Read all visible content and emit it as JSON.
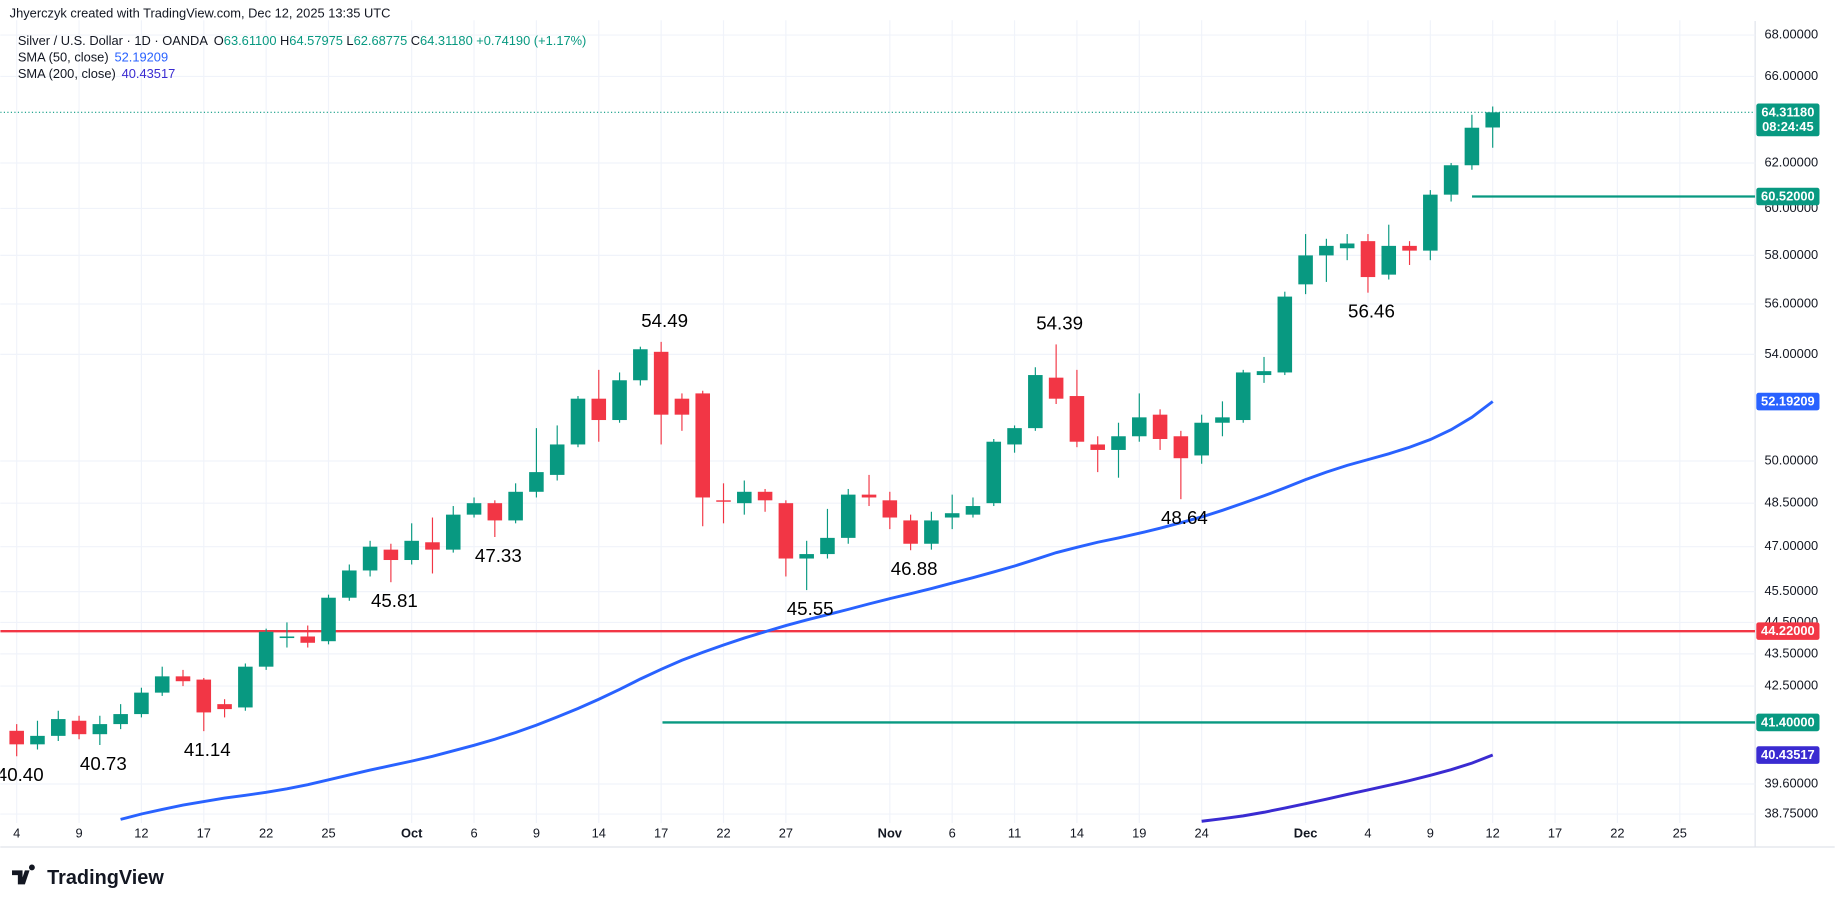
{
  "header": "Jhyerczyk created with TradingView.com, Dec 12, 2025 13:35 UTC",
  "brand": "TradingView",
  "chart_data": {
    "type": "candlestick",
    "symbol": "Silver / U.S. Dollar · 1D · OANDA",
    "ohlc_legend": [
      {
        "key": "O",
        "value": "63.61100"
      },
      {
        "key": "H",
        "value": "64.57975"
      },
      {
        "key": "L",
        "value": "62.68775"
      },
      {
        "key": "C",
        "value": "64.31180"
      }
    ],
    "change": "+0.74190 (+1.17%)",
    "categories": [
      "4",
      null,
      null,
      "9",
      null,
      null,
      "12",
      null,
      null,
      "17",
      null,
      null,
      "22",
      null,
      null,
      "25",
      null,
      null,
      null,
      "Oct",
      null,
      null,
      "6",
      null,
      null,
      "9",
      null,
      null,
      "14",
      null,
      null,
      "17",
      null,
      null,
      "22",
      null,
      null,
      "27",
      null,
      null,
      null,
      null,
      "Nov",
      null,
      null,
      "6",
      null,
      null,
      "11",
      null,
      null,
      "14",
      null,
      null,
      "19",
      null,
      null,
      "24",
      null,
      null,
      null,
      null,
      "Dec",
      null,
      null,
      "4",
      null,
      null,
      "9",
      null,
      null,
      "12",
      null,
      null,
      "17",
      null,
      null,
      "22",
      null,
      null,
      "25",
      null
    ],
    "open": [
      41.15,
      40.75,
      41.0,
      41.45,
      41.05,
      41.35,
      41.65,
      42.3,
      42.8,
      42.7,
      41.95,
      41.85,
      43.1,
      44.0,
      44.05,
      43.9,
      45.3,
      46.2,
      46.9,
      46.55,
      47.15,
      46.9,
      48.1,
      48.5,
      47.9,
      48.9,
      49.5,
      50.6,
      52.3,
      51.5,
      53.0,
      54.1,
      52.3,
      52.5,
      48.6,
      48.5,
      48.9,
      48.5,
      46.6,
      46.75,
      47.3,
      48.8,
      48.6,
      47.9,
      47.1,
      48.0,
      48.1,
      48.5,
      50.6,
      51.2,
      53.1,
      52.4,
      50.6,
      50.4,
      50.9,
      51.7,
      50.9,
      50.2,
      51.4,
      51.5,
      53.2,
      53.3,
      56.8,
      58.0,
      58.3,
      58.6,
      57.2,
      58.4,
      58.2,
      60.6,
      61.9,
      63.611,
      null,
      null,
      null,
      null,
      null,
      null,
      null,
      null,
      null,
      null
    ],
    "high": [
      41.35,
      41.45,
      41.75,
      41.6,
      41.6,
      41.95,
      42.45,
      43.1,
      43.0,
      42.75,
      42.1,
      43.2,
      44.3,
      44.5,
      44.4,
      45.4,
      46.4,
      47.2,
      47.1,
      47.8,
      48.0,
      48.4,
      48.7,
      48.6,
      49.2,
      51.2,
      51.3,
      52.4,
      53.4,
      53.3,
      54.3,
      54.49,
      52.5,
      52.6,
      49.2,
      49.3,
      49.0,
      48.6,
      47.2,
      48.3,
      49.0,
      49.5,
      48.9,
      48.1,
      48.2,
      48.8,
      48.7,
      50.8,
      51.3,
      53.5,
      54.39,
      53.4,
      50.9,
      51.4,
      52.5,
      51.9,
      51.1,
      51.7,
      52.2,
      53.4,
      53.9,
      56.5,
      58.9,
      58.7,
      58.9,
      58.9,
      59.3,
      58.6,
      60.8,
      62.0,
      64.2,
      64.57975,
      null,
      null,
      null,
      null,
      null,
      null,
      null,
      null,
      null,
      null
    ],
    "low": [
      40.4,
      40.6,
      40.85,
      40.9,
      40.73,
      41.2,
      41.55,
      42.2,
      42.5,
      41.14,
      41.55,
      41.75,
      43.0,
      43.7,
      43.7,
      43.8,
      45.2,
      46.0,
      45.81,
      46.4,
      46.1,
      46.8,
      48.0,
      47.33,
      47.8,
      48.7,
      49.3,
      50.5,
      50.7,
      51.4,
      52.8,
      50.6,
      51.1,
      47.7,
      47.8,
      48.1,
      48.2,
      46.0,
      45.55,
      46.6,
      47.1,
      48.4,
      47.6,
      46.88,
      46.9,
      47.6,
      48.0,
      48.4,
      50.3,
      51.1,
      52.1,
      50.5,
      49.6,
      49.4,
      50.7,
      50.4,
      48.64,
      49.9,
      50.9,
      51.4,
      52.9,
      53.2,
      56.4,
      56.9,
      57.8,
      56.46,
      57.0,
      57.6,
      57.8,
      60.3,
      61.7,
      62.68775,
      null,
      null,
      null,
      null,
      null,
      null,
      null,
      null,
      null,
      null
    ],
    "close": [
      40.75,
      41.0,
      41.5,
      41.05,
      41.35,
      41.65,
      42.3,
      42.8,
      42.65,
      41.7,
      41.8,
      43.1,
      44.2,
      44.05,
      43.85,
      45.3,
      46.2,
      47.0,
      46.55,
      47.2,
      46.9,
      48.1,
      48.5,
      47.9,
      48.9,
      49.6,
      50.6,
      52.3,
      51.5,
      53.0,
      54.2,
      51.7,
      51.7,
      48.7,
      48.55,
      48.9,
      48.6,
      46.6,
      46.75,
      47.3,
      48.8,
      48.7,
      48.0,
      47.1,
      47.9,
      48.15,
      48.4,
      50.7,
      51.2,
      53.2,
      52.3,
      50.7,
      50.4,
      50.9,
      51.6,
      50.8,
      50.1,
      51.4,
      51.6,
      53.3,
      53.35,
      56.3,
      58.0,
      58.4,
      58.5,
      57.1,
      58.4,
      58.2,
      60.6,
      61.9,
      63.6,
      64.3118,
      null,
      null,
      null,
      null,
      null,
      null,
      null,
      null,
      null,
      null
    ],
    "up_color": "#089981",
    "down_color": "#f23645",
    "series": [
      {
        "name": "SMA (50, close)",
        "color": "#2962ff",
        "values": [
          null,
          null,
          null,
          null,
          null,
          38.6,
          38.75,
          38.88,
          39.0,
          39.1,
          39.2,
          39.28,
          39.36,
          39.46,
          39.58,
          39.72,
          39.86,
          40.0,
          40.13,
          40.26,
          40.4,
          40.56,
          40.72,
          40.9,
          41.1,
          41.32,
          41.56,
          41.82,
          42.1,
          42.4,
          42.72,
          43.02,
          43.3,
          43.55,
          43.78,
          44.0,
          44.2,
          44.4,
          44.58,
          44.75,
          44.92,
          45.1,
          45.27,
          45.43,
          45.6,
          45.78,
          45.96,
          46.15,
          46.35,
          46.57,
          46.8,
          46.98,
          47.15,
          47.3,
          47.46,
          47.63,
          47.82,
          48.02,
          48.25,
          48.5,
          48.76,
          49.04,
          49.33,
          49.6,
          49.84,
          50.05,
          50.26,
          50.5,
          50.78,
          51.14,
          51.6,
          52.19209,
          null,
          null,
          null,
          null,
          null,
          null,
          null,
          null,
          null,
          null
        ]
      },
      {
        "name": "SMA (200, close)",
        "color": "#3a2bd1",
        "values": [
          null,
          null,
          null,
          null,
          null,
          null,
          null,
          null,
          null,
          null,
          null,
          null,
          null,
          null,
          null,
          null,
          null,
          null,
          null,
          null,
          null,
          null,
          null,
          null,
          null,
          null,
          null,
          null,
          null,
          null,
          null,
          null,
          null,
          null,
          null,
          null,
          null,
          null,
          null,
          null,
          null,
          null,
          null,
          null,
          null,
          null,
          null,
          null,
          null,
          null,
          null,
          null,
          null,
          null,
          null,
          null,
          null,
          38.55,
          38.62,
          38.7,
          38.8,
          38.92,
          39.04,
          39.17,
          39.3,
          39.43,
          39.56,
          39.7,
          39.85,
          40.01,
          40.2,
          40.43517,
          null,
          null,
          null,
          null,
          null,
          null,
          null,
          null,
          null,
          null
        ]
      }
    ],
    "last_price": {
      "value": 64.3118,
      "label": "64.31180",
      "countdown": "08:24:45"
    },
    "hlines": [
      {
        "value": 44.22,
        "label": "44.22000",
        "color": "#f23645"
      },
      {
        "value": 60.52,
        "label": "60.52000",
        "color": "#089981"
      },
      {
        "value": 41.4,
        "label": "41.40000",
        "color": "#089981"
      }
    ],
    "annotations": [
      {
        "text": "40.40",
        "value": 40.4
      },
      {
        "text": "40.73",
        "value": 40.73
      },
      {
        "text": "41.14",
        "value": 41.14
      },
      {
        "text": "45.81",
        "value": 45.81
      },
      {
        "text": "47.33",
        "value": 47.33
      },
      {
        "text": "54.49",
        "value": 54.49
      },
      {
        "text": "45.55",
        "value": 45.55
      },
      {
        "text": "46.88",
        "value": 46.88
      },
      {
        "text": "54.39",
        "value": 54.39
      },
      {
        "text": "48.64",
        "value": 48.64
      },
      {
        "text": "56.46",
        "value": 56.46
      }
    ],
    "ylim": [
      38.5,
      68.5
    ],
    "log_scale": true,
    "yticks": [
      {
        "value": 68,
        "label": "68.00000"
      },
      {
        "value": 66,
        "label": "66.00000"
      },
      {
        "value": 62,
        "label": "62.00000"
      },
      {
        "value": 60,
        "label": "60.00000"
      },
      {
        "value": 58,
        "label": "58.00000"
      },
      {
        "value": 56,
        "label": "56.00000"
      },
      {
        "value": 54,
        "label": "54.00000"
      },
      {
        "value": 50,
        "label": "50.00000"
      },
      {
        "value": 48.5,
        "label": "48.50000"
      },
      {
        "value": 47,
        "label": "47.00000"
      },
      {
        "value": 45.5,
        "label": "45.50000"
      },
      {
        "value": 44.5,
        "label": "44.50000"
      },
      {
        "value": 43.5,
        "label": "43.50000"
      },
      {
        "value": 42.5,
        "label": "42.50000"
      },
      {
        "value": 39.6,
        "label": "39.60000"
      },
      {
        "value": 38.75,
        "label": "38.75000"
      }
    ],
    "grid": true
  }
}
